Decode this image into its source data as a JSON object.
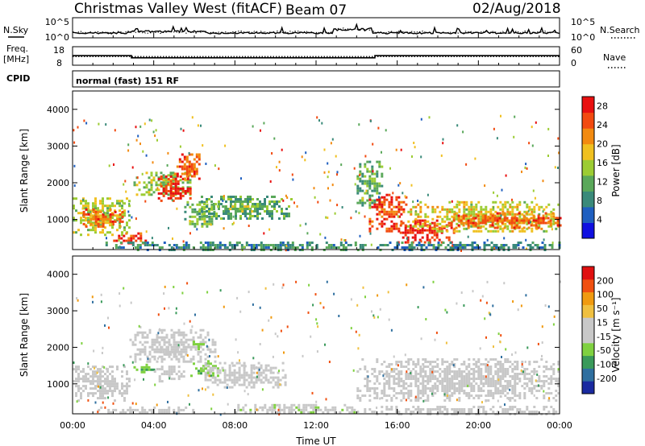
{
  "header": {
    "station": "Christmas Valley West (fitACF)",
    "beam": "Beam 07",
    "date": "02/Aug/2018"
  },
  "noise_panel": {
    "left_label": "N.Sky",
    "right_label": "N.Search",
    "left_ticks": [
      "10^5",
      "10^0"
    ],
    "right_ticks": [
      "10^5",
      "10^0"
    ]
  },
  "freq_panel": {
    "left_label_1": "Freq.",
    "left_label_2": "[MHz]",
    "left_ticks": [
      "18",
      "8"
    ],
    "right_label": "Nave",
    "right_ticks": [
      "60",
      "0"
    ],
    "freq_steps": [
      [
        0,
        13.2
      ],
      [
        2.9,
        12.0
      ],
      [
        14.9,
        13.2
      ],
      [
        24,
        13.2
      ]
    ],
    "nave_level": 28
  },
  "cpid": {
    "label": "CPID",
    "mode": "normal (fast) 151 RF"
  },
  "colors": {
    "power_scale": [
      "#1010e0",
      "#1f5fc0",
      "#3a8a7a",
      "#5aa85a",
      "#9ccc33",
      "#f0c020",
      "#f28a10",
      "#f24a10",
      "#e81010"
    ],
    "velocity_scale": [
      "#e01010",
      "#f05010",
      "#f09a10",
      "#f0c040",
      "#c8c8c8",
      "#c8c8c8",
      "#7fd140",
      "#3a9a5a",
      "#2f6f9f",
      "#1a2aa0"
    ]
  },
  "chart_data": [
    {
      "type": "heatmap",
      "panel": "power",
      "ylabel": "Slant Range [km]",
      "ylim": [
        180,
        4500
      ],
      "yticks": [
        "1000",
        "2000",
        "3000",
        "4000"
      ],
      "xlim": [
        0,
        24
      ],
      "colorbar_label": "Power [dB]",
      "colorbar_ticks": [
        "4",
        "8",
        "12",
        "16",
        "20",
        "24",
        "28"
      ],
      "colorbar_range": [
        0,
        30
      ],
      "regions": [
        {
          "t0": 0.0,
          "t1": 2.8,
          "r0": 600,
          "r1": 1600,
          "value": 16
        },
        {
          "t0": 0.5,
          "t1": 2.5,
          "r0": 800,
          "r1": 1300,
          "value": 24
        },
        {
          "t0": 2.0,
          "t1": 3.6,
          "r0": 350,
          "r1": 650,
          "value": 26
        },
        {
          "t0": 3.0,
          "t1": 5.8,
          "r0": 1700,
          "r1": 2300,
          "value": 14
        },
        {
          "t0": 4.2,
          "t1": 5.8,
          "r0": 1500,
          "r1": 2200,
          "value": 27
        },
        {
          "t0": 5.0,
          "t1": 6.2,
          "r0": 2100,
          "r1": 2800,
          "value": 24
        },
        {
          "t0": 5.5,
          "t1": 7.0,
          "r0": 800,
          "r1": 1500,
          "value": 13
        },
        {
          "t0": 6.2,
          "t1": 10.8,
          "r0": 1000,
          "r1": 1650,
          "value": 11
        },
        {
          "t0": 7.0,
          "t1": 9.0,
          "r0": 1250,
          "r1": 1450,
          "value": 15
        },
        {
          "t0": 1.5,
          "t1": 14.5,
          "r0": 200,
          "r1": 400,
          "value": 9
        },
        {
          "t0": 14.0,
          "t1": 15.2,
          "r0": 1300,
          "r1": 2600,
          "value": 11
        },
        {
          "t0": 14.6,
          "t1": 16.5,
          "r0": 700,
          "r1": 1700,
          "value": 26
        },
        {
          "t0": 16.0,
          "t1": 18.8,
          "r0": 400,
          "r1": 1000,
          "value": 28
        },
        {
          "t0": 16.5,
          "t1": 24.0,
          "r0": 700,
          "r1": 1500,
          "value": 17
        },
        {
          "t0": 18.5,
          "t1": 24.0,
          "r0": 800,
          "r1": 1200,
          "value": 24
        },
        {
          "t0": 15.0,
          "t1": 24.0,
          "r0": 200,
          "r1": 400,
          "value": 8
        }
      ]
    },
    {
      "type": "heatmap",
      "panel": "velocity",
      "ylabel": "Slant Range [km]",
      "xlabel": "Time UT",
      "ylim": [
        180,
        4500
      ],
      "yticks": [
        "1000",
        "2000",
        "3000",
        "4000"
      ],
      "xlim": [
        0,
        24
      ],
      "xticks": [
        "00:00",
        "04:00",
        "08:00",
        "12:00",
        "16:00",
        "20:00",
        "00:00"
      ],
      "colorbar_label": "Velocity [m s⁻¹]",
      "colorbar_ticks": [
        "200",
        "100",
        "50",
        "15",
        "-15",
        "-50",
        "-100",
        "-200"
      ],
      "colorbar_range": [
        -250,
        250
      ],
      "regions": [
        {
          "t0": 0.0,
          "t1": 2.8,
          "r0": 550,
          "r1": 1500,
          "value": 0
        },
        {
          "t0": 2.8,
          "t1": 7.0,
          "r0": 1600,
          "r1": 2500,
          "value": 0
        },
        {
          "t0": 4.3,
          "t1": 5.2,
          "r0": 1800,
          "r1": 2100,
          "value": -30
        },
        {
          "t0": 5.8,
          "t1": 6.4,
          "r0": 1950,
          "r1": 2250,
          "value": -80
        },
        {
          "t0": 3.0,
          "t1": 4.0,
          "r0": 1350,
          "r1": 1550,
          "value": -90
        },
        {
          "t0": 5.8,
          "t1": 7.2,
          "r0": 1200,
          "r1": 1650,
          "value": -90
        },
        {
          "t0": 4.0,
          "t1": 5.5,
          "r0": 1100,
          "r1": 1500,
          "value": 0
        },
        {
          "t0": 6.5,
          "t1": 10.5,
          "r0": 900,
          "r1": 1600,
          "value": 0
        },
        {
          "t0": 1.0,
          "t1": 6.0,
          "r0": 200,
          "r1": 380,
          "value": 30
        },
        {
          "t0": 8.0,
          "t1": 14.0,
          "r0": 200,
          "r1": 450,
          "value": -40
        },
        {
          "t0": 14.0,
          "t1": 24.0,
          "r0": 550,
          "r1": 1700,
          "value": 0
        },
        {
          "t0": 14.0,
          "t1": 24.0,
          "r0": 200,
          "r1": 400,
          "value": 30
        }
      ]
    }
  ]
}
